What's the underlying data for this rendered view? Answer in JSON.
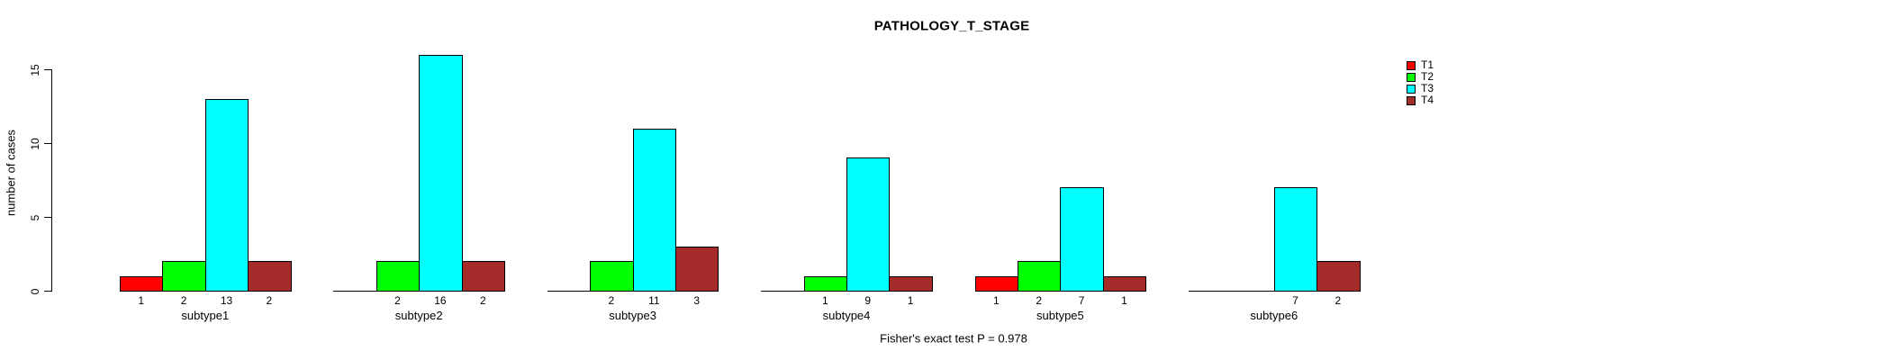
{
  "chart_data": {
    "type": "bar",
    "title": "PATHOLOGY_T_STAGE",
    "ylabel": "number of cases",
    "xlabel": "",
    "footer": "Fisher's exact test P = 0.978",
    "categories": [
      "subtype1",
      "subtype2",
      "subtype3",
      "subtype4",
      "subtype5",
      "subtype6"
    ],
    "series": [
      {
        "name": "T1",
        "color": "#FF0000",
        "values": [
          1,
          0,
          0,
          0,
          1,
          0
        ]
      },
      {
        "name": "T2",
        "color": "#00FF00",
        "values": [
          2,
          2,
          2,
          1,
          2,
          0
        ]
      },
      {
        "name": "T3",
        "color": "#00FFFF",
        "values": [
          13,
          16,
          11,
          9,
          7,
          7
        ]
      },
      {
        "name": "T4",
        "color": "#A52A2A",
        "values": [
          2,
          2,
          3,
          1,
          1,
          2
        ]
      }
    ],
    "yticks": [
      0,
      5,
      10,
      15
    ],
    "ylim": [
      0,
      16
    ],
    "grid": false,
    "legend": {
      "position": "top-right",
      "entries": [
        "T1",
        "T2",
        "T3",
        "T4"
      ]
    },
    "bar_value_labels": true,
    "zero_bars_drawn_as_flat_segments": true,
    "axis_color": "#000000",
    "background_color": "#FFFFFF"
  }
}
